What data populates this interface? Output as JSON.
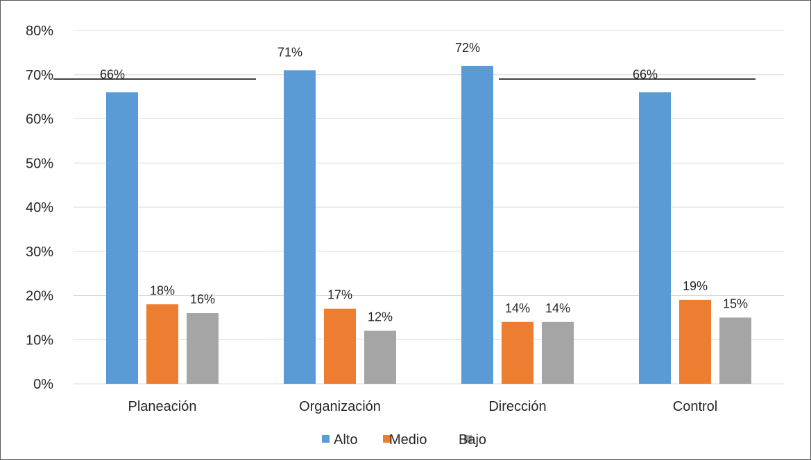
{
  "chart_data": {
    "type": "bar",
    "title": "",
    "xlabel": "",
    "ylabel": "",
    "categories": [
      "Planeación",
      "Organización",
      "Dirección",
      "Control"
    ],
    "series": [
      {
        "name": "Alto",
        "color": "#5B9BD5",
        "values": [
          0.66,
          0.71,
          0.72,
          0.66
        ],
        "labels": [
          "66%",
          "71%",
          "72%",
          "66%"
        ]
      },
      {
        "name": "Medio",
        "color": "#ED7D31",
        "values": [
          0.18,
          0.17,
          0.14,
          0.19
        ],
        "labels": [
          "18%",
          "17%",
          "14%",
          "19%"
        ]
      },
      {
        "name": "Bajo",
        "color": "#A5A5A5",
        "values": [
          0.16,
          0.12,
          0.14,
          0.15
        ],
        "labels": [
          "16%",
          "12%",
          "14%",
          "15%"
        ]
      }
    ],
    "ylim": [
      0,
      0.8
    ],
    "yticks": [
      0,
      0.1,
      0.2,
      0.3,
      0.4,
      0.5,
      0.6,
      0.7,
      0.8
    ],
    "ytick_labels": [
      "0%",
      "10%",
      "20%",
      "30%",
      "40%",
      "50%",
      "60%",
      "70%",
      "80%"
    ],
    "grid": true,
    "legend_position": "bottom",
    "reference_line_value": 0.69,
    "gridline_color": "#D9D9D9"
  }
}
